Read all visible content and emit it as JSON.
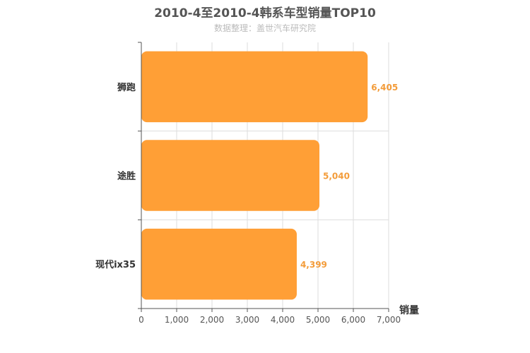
{
  "chart_data": {
    "type": "bar",
    "orientation": "horizontal",
    "title": "2010-4至2010-4韩系车型销量TOP10",
    "subtitle": "数据整理：盖世汽车研究院",
    "categories": [
      "狮跑",
      "途胜",
      "现代ix35"
    ],
    "values": [
      6405,
      5040,
      4399
    ],
    "value_labels": [
      "6,405",
      "5,040",
      "4,399"
    ],
    "xlabel": "销量",
    "ylabel": "",
    "xlim": [
      0,
      7000
    ],
    "xticks": [
      0,
      1000,
      2000,
      3000,
      4000,
      5000,
      6000,
      7000
    ],
    "xtick_labels": [
      "0",
      "1,000",
      "2,000",
      "3,000",
      "4,000",
      "5,000",
      "6,000",
      "7,000"
    ],
    "grid": true,
    "legend": "none",
    "bar_color": "#ff9f36",
    "label_color": "#f39c3a"
  }
}
